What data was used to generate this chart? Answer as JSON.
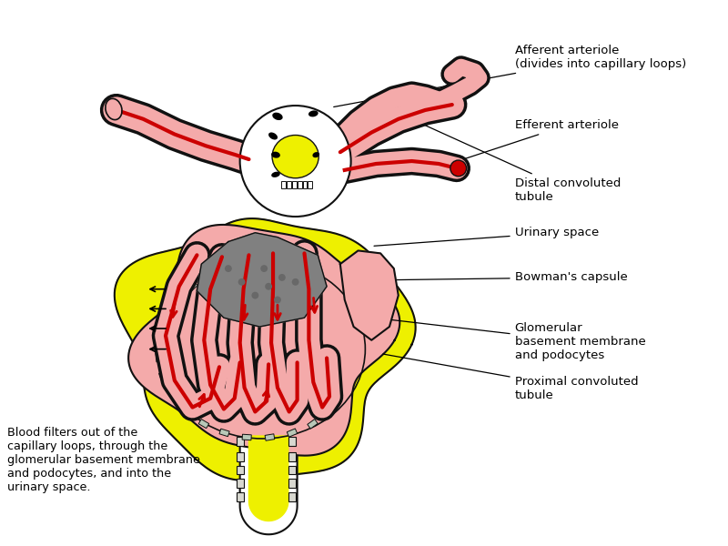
{
  "labels": {
    "afferent": "Afferent arteriole\n(divides into capillary loops)",
    "efferent": "Efferent arteriole",
    "distal": "Distal convoluted\ntubule",
    "urinary": "Urinary space",
    "bowman": "Bowman's capsule",
    "glomerular": "Glomerular\nbasement membrane\nand podocytes",
    "proximal": "Proximal convoluted\ntubule",
    "blood_filter": "Blood filters out of the\ncapillary loops, through the\nglomerular basement membrane\nand podocytes, and into the\nurinary space."
  },
  "colors": {
    "pink": "#f4aaaa",
    "pink_mid": "#e89090",
    "yellow": "#eef000",
    "yellow_bright": "#ffff00",
    "gray": "#a0a0a0",
    "gray_dark": "#808080",
    "outline": "#111111",
    "red": "#cc0000",
    "white": "#ffffff",
    "gbm_gray": "#b8c8b8",
    "gbm_white": "#e8e8e8"
  }
}
